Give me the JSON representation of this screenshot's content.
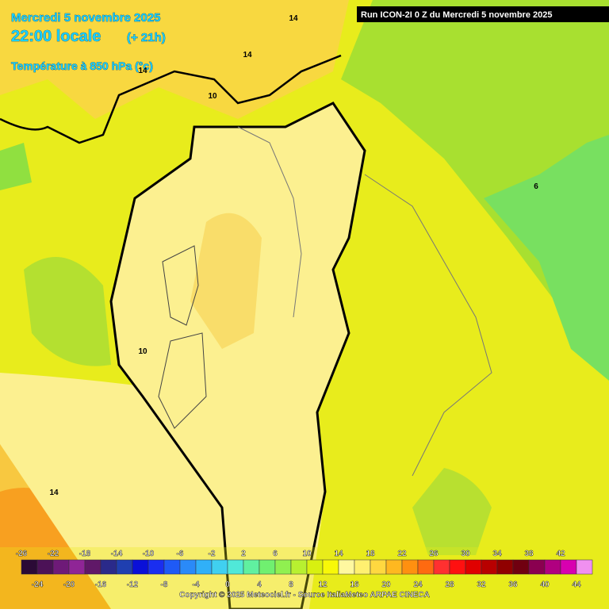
{
  "header": {
    "date": "Mercredi 5 novembre 2025",
    "time": "22:00 locale",
    "lead": "(+ 21h)",
    "field": "Température à 850 hPa (°c)",
    "run": "Run ICON-2I 0 Z du Mercredi 5 novembre 2025"
  },
  "contour_labels": [
    14,
    14,
    10,
    14,
    6,
    10,
    14
  ],
  "legend": {
    "labels": [
      -26,
      -24,
      -22,
      -20,
      -18,
      -16,
      -14,
      -12,
      -10,
      -8,
      -6,
      -4,
      -2,
      0,
      2,
      4,
      6,
      8,
      10,
      12,
      14,
      16,
      18,
      20,
      22,
      24,
      26,
      28,
      30,
      32,
      34,
      36,
      38,
      40,
      42,
      44
    ],
    "colors": [
      "#2b0a36",
      "#4c1257",
      "#6e1a78",
      "#8f2596",
      "#601868",
      "#2a2a8a",
      "#1f3fb0",
      "#0a10d8",
      "#1a2ef0",
      "#1f5af5",
      "#2a8af8",
      "#30b0f8",
      "#40d0f0",
      "#50e8d8",
      "#60f0a0",
      "#70f070",
      "#90f050",
      "#b8f030",
      "#d8f010",
      "#f8f808",
      "#fff8a0",
      "#fff070",
      "#ffd840",
      "#ffb820",
      "#ff9010",
      "#ff6a10",
      "#ff3030",
      "#ff1010",
      "#e00000",
      "#b80000",
      "#900000",
      "#700010",
      "#8a0050",
      "#b00080",
      "#d800b0",
      "#f090f0"
    ]
  },
  "footer": {
    "copyright": "Copyright © 2025 Meteociel.fr - Source ItaliaMeteo ARPAE CINECA"
  }
}
